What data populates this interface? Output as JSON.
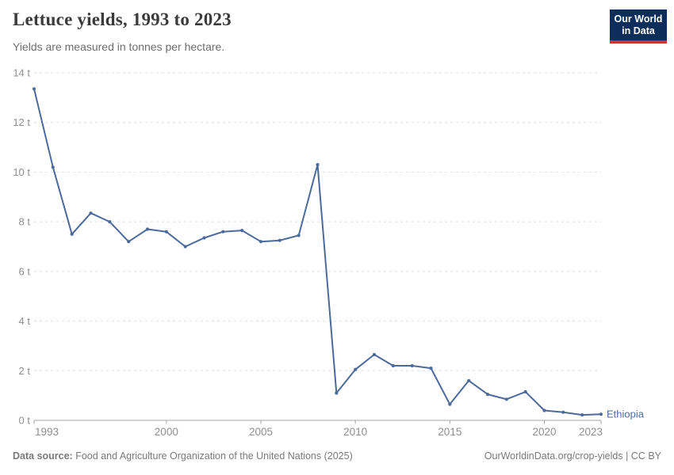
{
  "header": {
    "title": "Lettuce yields, 1993 to 2023",
    "subtitle": "Yields are measured in tonnes per hectare.",
    "logo": {
      "line1": "Our World",
      "line2": "in Data"
    }
  },
  "chart_data": {
    "type": "line",
    "title": "Lettuce yields, 1993 to 2023",
    "subtitle": "Yields are measured in tonnes per hectare.",
    "x": [
      1993,
      1994,
      1995,
      1996,
      1997,
      1998,
      1999,
      2000,
      2001,
      2002,
      2003,
      2004,
      2005,
      2006,
      2007,
      2008,
      2009,
      2010,
      2011,
      2012,
      2013,
      2014,
      2015,
      2016,
      2017,
      2018,
      2019,
      2020,
      2021,
      2022,
      2023
    ],
    "series": [
      {
        "name": "Ethiopia",
        "color": "#4c6a9c",
        "values": [
          13.35,
          10.2,
          7.5,
          8.35,
          8.0,
          7.2,
          7.7,
          7.6,
          7.0,
          7.35,
          7.6,
          7.65,
          7.2,
          7.25,
          7.45,
          10.3,
          1.1,
          2.05,
          2.65,
          2.2,
          2.2,
          2.1,
          0.65,
          1.6,
          1.05,
          0.85,
          1.15,
          0.4,
          0.33,
          0.22,
          0.25
        ]
      }
    ],
    "xlabel": "",
    "ylabel": "tonnes per hectare",
    "xlim": [
      1993,
      2023
    ],
    "ylim": [
      0,
      14
    ],
    "x_ticks": [
      1993,
      2000,
      2005,
      2010,
      2015,
      2020,
      2023
    ],
    "y_ticks": [
      0,
      2,
      4,
      6,
      8,
      10,
      12,
      14
    ],
    "y_tick_suffix": " t",
    "grid": "horizontal-dashed",
    "legend": "end-of-line-label"
  },
  "footer": {
    "datasource_label": "Data source:",
    "datasource_text": "Food and Agriculture Organization of the United Nations (2025)",
    "link": "OurWorldinData.org/crop-yields | CC BY"
  },
  "colors": {
    "series": "#4c6a9c",
    "logo_bg": "#0d2e5b",
    "logo_red": "#d0342c",
    "grid": "#dedede",
    "axis": "#a5a5a5",
    "tick_text": "#8f8f8f",
    "title_text": "#3b3b3b",
    "subtitle_text": "#6e6e6e",
    "footer_text": "#7a7a7a"
  }
}
